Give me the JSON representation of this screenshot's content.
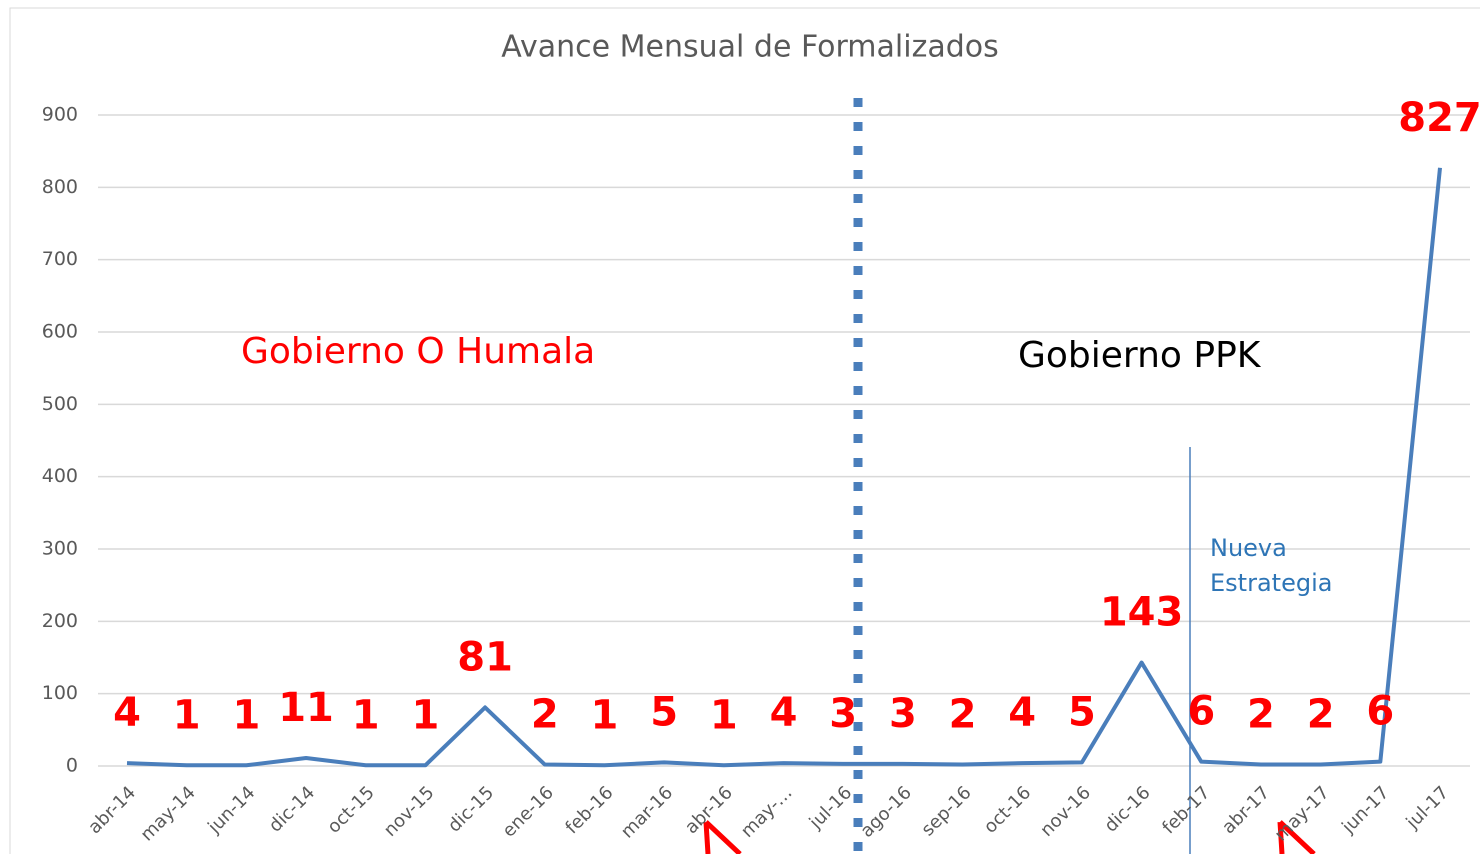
{
  "chart_data": {
    "type": "line",
    "title": "Avance Mensual de Formalizados",
    "categories": [
      "abr-14",
      "may-14",
      "jun-14",
      "dic-14",
      "oct-15",
      "nov-15",
      "dic-15",
      "ene-16",
      "feb-16",
      "mar-16",
      "abr-16",
      "may-…",
      "jul-16",
      "ago-16",
      "sep-16",
      "oct-16",
      "nov-16",
      "dic-16",
      "feb-17",
      "abr-17",
      "may-17",
      "jun-17",
      "jul-17"
    ],
    "series": [
      {
        "name": "Formalizados",
        "color": "#4a7ebb",
        "values": [
          4,
          1,
          1,
          11,
          1,
          1,
          81,
          2,
          1,
          5,
          1,
          4,
          3,
          3,
          2,
          4,
          5,
          143,
          6,
          2,
          2,
          6,
          827
        ]
      }
    ],
    "ylim": [
      0,
      900
    ],
    "yticks": [
      0,
      100,
      200,
      300,
      400,
      500,
      600,
      700,
      800,
      900
    ],
    "grid": true,
    "annotations": {
      "left": "Gobierno O Humala",
      "right": "Gobierno PPK",
      "strategy": [
        "Nueva",
        "Estrategia"
      ]
    }
  }
}
